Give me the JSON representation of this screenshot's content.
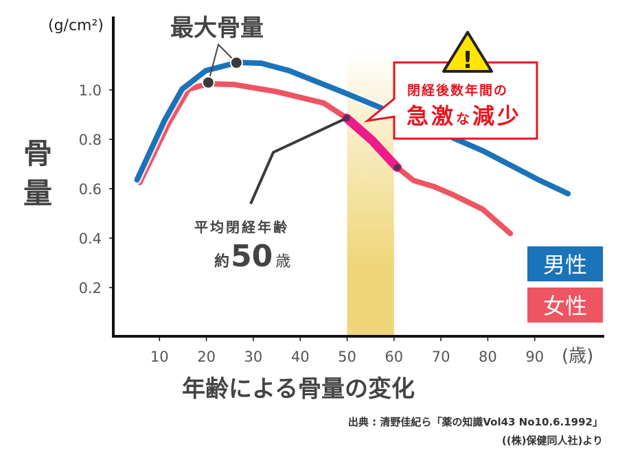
{
  "chart_data": {
    "type": "line",
    "title": "年齢による骨量の変化",
    "xlabel": "(歳)",
    "ylabel": "骨量",
    "yunit": "(g/cm²)",
    "xlim": [
      0,
      100
    ],
    "ylim": [
      0,
      1.2
    ],
    "xticks": [
      10,
      20,
      30,
      40,
      50,
      60,
      70,
      80,
      90
    ],
    "yticks": [
      0.2,
      0.4,
      0.6,
      0.8,
      1.0
    ],
    "ytick_labels": [
      "0.2",
      "0.4",
      "0.6",
      "0.8",
      "1.0"
    ],
    "grid": false,
    "legend_position": "bottom-right",
    "series": [
      {
        "name": "男性",
        "color": "#1b73b9",
        "x": [
          5.2,
          11.1,
          14.8,
          19.9,
          26.6,
          31.7,
          37.6,
          49.4,
          58.3,
          67.2,
          79.0,
          90.8,
          97.1
        ],
        "y": [
          0.636,
          0.878,
          1.003,
          1.078,
          1.111,
          1.108,
          1.078,
          0.989,
          0.919,
          0.85,
          0.753,
          0.636,
          0.58
        ]
      },
      {
        "name": "女性",
        "color": "#ee5563",
        "x": [
          5.8,
          11.9,
          16.2,
          20.4,
          25.8,
          34.7,
          45.0,
          49.9,
          55.4,
          60.5,
          64.2,
          68.6,
          73.0,
          78.9,
          84.8
        ],
        "y": [
          0.625,
          0.864,
          1.003,
          1.025,
          1.022,
          0.994,
          0.947,
          0.886,
          0.794,
          0.689,
          0.633,
          0.608,
          0.572,
          0.517,
          0.419
        ]
      }
    ],
    "highlight_band": {
      "x": [
        50,
        60
      ],
      "color": "#efd67a"
    },
    "highlight_segment": {
      "series": "女性",
      "x": [
        49.9,
        60.7
      ],
      "y": [
        0.886,
        0.686
      ],
      "color": "#ec1c8c"
    },
    "annotations": {
      "peak": {
        "label": "最大骨量",
        "points": [
          {
            "x": 26.4,
            "y": 1.11
          },
          {
            "x": 20.4,
            "y": 1.03
          }
        ]
      },
      "menopause": {
        "line1": "平均閉経年齢",
        "prefix": "約",
        "number": "50",
        "suffix": "歳"
      },
      "callout": {
        "line1": "閉経後数年間の",
        "line2_parts": [
          "急",
          "激",
          "な",
          "減",
          "少"
        ],
        "color": "#e8141e"
      },
      "warning_icon": "warning-triangle-icon",
      "warning_mark": "!"
    },
    "source_line1": "出典 : 清野佳紀ら「薬の知識Vol43 No10.6.1992」",
    "source_line2": "((株)保健同人社)より"
  }
}
